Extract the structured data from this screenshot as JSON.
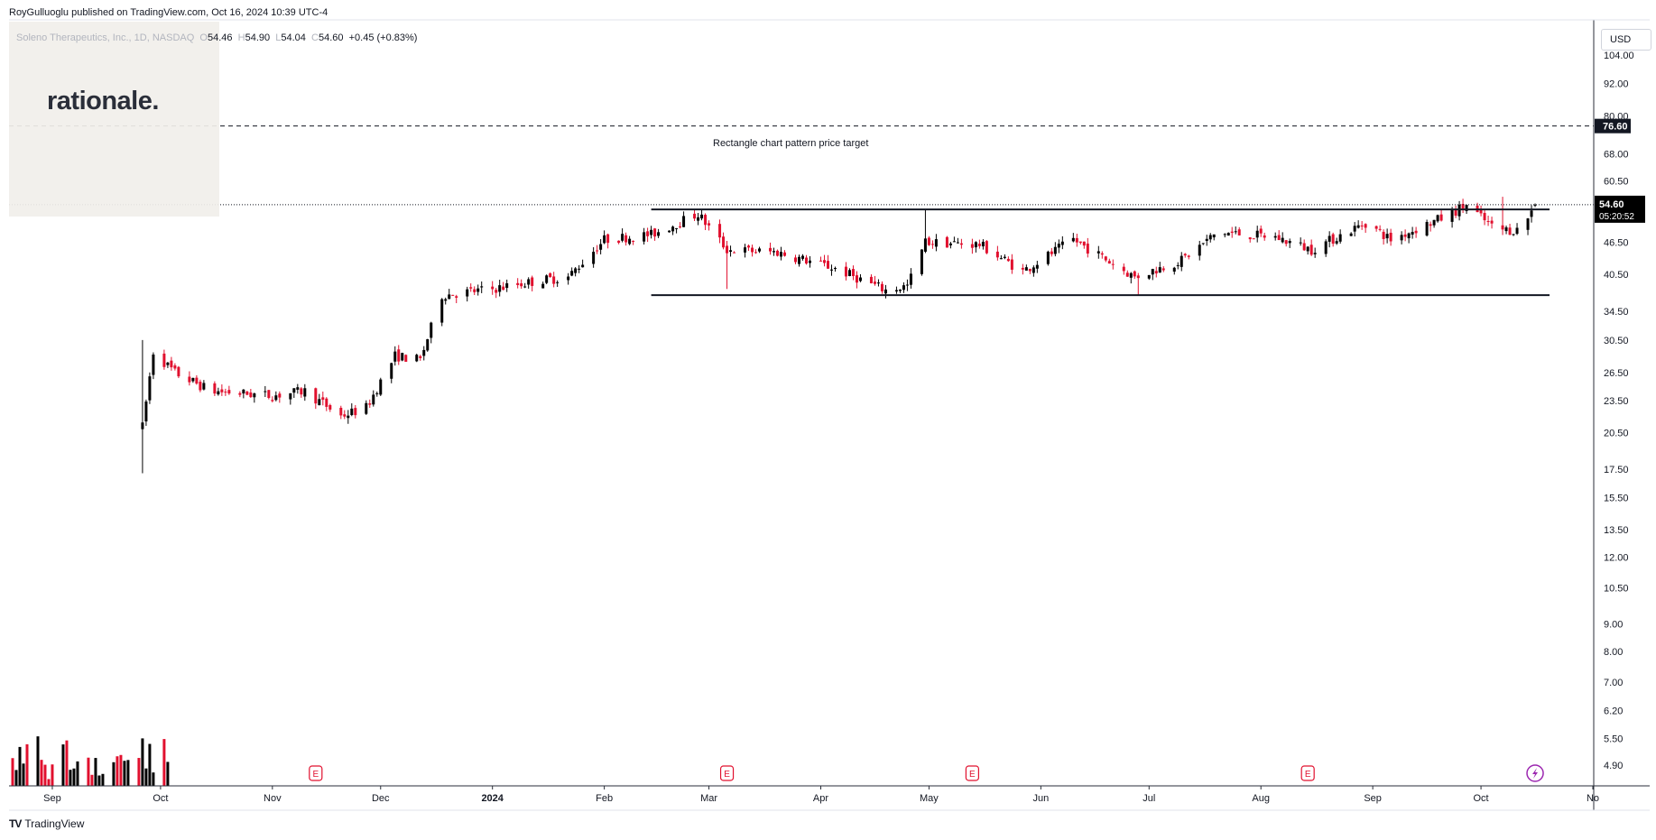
{
  "header": {
    "publisher": "RoyGulluoglu published on TradingView.com, Oct 16, 2024 10:39 UTC-4",
    "symbol": "Soleno Therapeutics, Inc., 1D, NASDAQ",
    "open_label": "O",
    "open": "54.46",
    "high_label": "H",
    "high": "54.90",
    "low_label": "L",
    "low": "54.04",
    "close_label": "C",
    "close": "54.60",
    "change": "+0.45 (+0.83%)"
  },
  "logo": {
    "text": "rationale."
  },
  "price_axis": {
    "currency": "USD",
    "ticks": [
      "104.00",
      "92.00",
      "80.00",
      "68.00",
      "60.50",
      "54.60",
      "46.50",
      "40.50",
      "34.50",
      "30.50",
      "26.50",
      "23.50",
      "20.50",
      "17.50",
      "15.50",
      "13.50",
      "12.00",
      "10.50",
      "9.00",
      "8.00",
      "7.00",
      "6.20",
      "5.50",
      "4.90"
    ],
    "target_label": "76.60",
    "last_price_label": "54.60",
    "countdown_label": "05:20:52"
  },
  "time_axis": {
    "labels": [
      "Sep",
      "Oct",
      "Nov",
      "Dec",
      "2024",
      "Feb",
      "Mar",
      "Apr",
      "May",
      "Jun",
      "Jul",
      "Aug",
      "Sep",
      "Oct",
      "No"
    ]
  },
  "annotation": {
    "text": "Rectangle chart pattern price target"
  },
  "footer": {
    "brand": "TradingView",
    "mark": "TV"
  },
  "colors": {
    "up": "#000000",
    "down": "#e1102e",
    "pattern_line": "#131722",
    "axis": "#131722"
  },
  "chart_data": {
    "type": "candlestick",
    "title": "Soleno Therapeutics, Inc., 1D, NASDAQ",
    "y_scale": "log",
    "ylim": [
      4.5,
      120
    ],
    "x_range": [
      "2023-08-20",
      "2024-11-01"
    ],
    "rectangle_pattern": {
      "start": "2024-02-14",
      "end": "2024-10-20",
      "top": 53.5,
      "bottom": 37.0
    },
    "price_target": 76.6,
    "last_price": 54.6,
    "earnings_markers": [
      "2023-11-13",
      "2024-03-06",
      "2024-05-13",
      "2024-08-14"
    ],
    "alert_marker": "2024-10-16",
    "anchors": [
      {
        "date": "2023-09-26",
        "price": 21.0
      },
      {
        "date": "2023-09-29",
        "price": 29.0
      },
      {
        "date": "2023-10-05",
        "price": 26.5
      },
      {
        "date": "2023-10-15",
        "price": 24.5
      },
      {
        "date": "2023-11-01",
        "price": 24.0
      },
      {
        "date": "2023-11-10",
        "price": 24.5
      },
      {
        "date": "2023-11-20",
        "price": 22.0
      },
      {
        "date": "2023-11-27",
        "price": 22.8
      },
      {
        "date": "2023-12-05",
        "price": 28.5
      },
      {
        "date": "2023-12-12",
        "price": 28.0
      },
      {
        "date": "2023-12-18",
        "price": 37.0
      },
      {
        "date": "2024-01-01",
        "price": 38.0
      },
      {
        "date": "2024-01-15",
        "price": 39.5
      },
      {
        "date": "2024-01-22",
        "price": 40.0
      },
      {
        "date": "2024-02-01",
        "price": 47.0
      },
      {
        "date": "2024-02-14",
        "price": 48.0
      },
      {
        "date": "2024-02-27",
        "price": 52.5
      },
      {
        "date": "2024-03-06",
        "price": 45.0
      },
      {
        "date": "2024-03-20",
        "price": 44.5
      },
      {
        "date": "2024-04-05",
        "price": 41.5
      },
      {
        "date": "2024-04-19",
        "price": 37.8
      },
      {
        "date": "2024-04-25",
        "price": 38.5
      },
      {
        "date": "2024-04-30",
        "price": 46.5
      },
      {
        "date": "2024-05-15",
        "price": 46.0
      },
      {
        "date": "2024-05-27",
        "price": 41.0
      },
      {
        "date": "2024-06-10",
        "price": 47.0
      },
      {
        "date": "2024-06-27",
        "price": 40.0
      },
      {
        "date": "2024-07-10",
        "price": 43.0
      },
      {
        "date": "2024-07-20",
        "price": 48.5
      },
      {
        "date": "2024-08-05",
        "price": 47.5
      },
      {
        "date": "2024-08-15",
        "price": 45.0
      },
      {
        "date": "2024-08-30",
        "price": 50.5
      },
      {
        "date": "2024-09-06",
        "price": 47.0
      },
      {
        "date": "2024-09-20",
        "price": 51.5
      },
      {
        "date": "2024-09-27",
        "price": 54.5
      },
      {
        "date": "2024-10-05",
        "price": 49.0
      },
      {
        "date": "2024-10-12",
        "price": 49.0
      },
      {
        "date": "2024-10-16",
        "price": 54.6
      }
    ],
    "volume_note": "volume histogram at bottom-left from late Aug to late Sep 2023"
  }
}
